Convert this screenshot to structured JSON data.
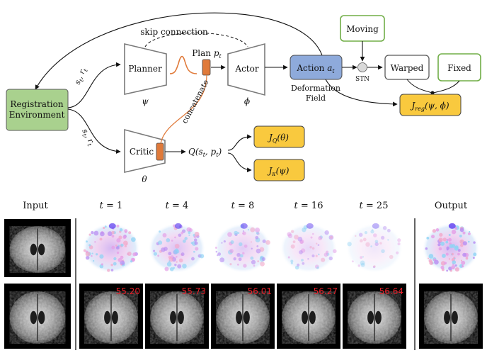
{
  "diagram": {
    "env": {
      "line1": "Registration",
      "line2": "Environment"
    },
    "planner": {
      "label": "Planner",
      "param": "ψ"
    },
    "actor": {
      "label": "Actor",
      "param": "ϕ"
    },
    "critic": {
      "label": "Critic",
      "param": "θ"
    },
    "plan": {
      "text": "Plan ",
      "var": "p",
      "sub": "t"
    },
    "skip": "skip connection",
    "concat": "concatenate",
    "state_top": {
      "s": "s",
      "st": "t",
      "r": "r",
      "rt": "t"
    },
    "state_bottom": {
      "s": "s",
      "st": "t",
      "r": "r",
      "rt": "t"
    },
    "action": {
      "text": "Action ",
      "var": "a",
      "sub": "t"
    },
    "deformation": {
      "line1": "Deformation",
      "line2": "Field"
    },
    "q": {
      "pre": "Q(s",
      "s_sub": "t",
      "mid": ", p",
      "p_sub": "t",
      "post": ")"
    },
    "moving": "Moving",
    "stn": "STN",
    "warped": "Warped",
    "fixed": "Fixed",
    "jreg": {
      "J": "J",
      "sub": "reg",
      "args": "(ψ, ϕ)"
    },
    "jq": {
      "J": "J",
      "sub": "Q",
      "args": "(θ)"
    },
    "jk": {
      "J": "J",
      "sub": "κ",
      "args": "(ψ)"
    }
  },
  "strip": {
    "headers": {
      "input": "Input",
      "t1": {
        "var": "t",
        "eq": " = 1"
      },
      "t4": {
        "var": "t",
        "eq": " = 4"
      },
      "t8": {
        "var": "t",
        "eq": " = 8"
      },
      "t16": {
        "var": "t",
        "eq": " = 16"
      },
      "t25": {
        "var": "t",
        "eq": " = 25"
      },
      "output": "Output"
    },
    "scores": [
      "55.20",
      "55.73",
      "56.01",
      "56.27",
      "56.64"
    ],
    "intensity": [
      1.0,
      0.85,
      0.72,
      0.55,
      0.35
    ],
    "colors": {
      "green": "#a9d18e",
      "blue": "#8eaadb",
      "orange": "#f4b183",
      "gold": "#f9c93e",
      "score_red": "#e8202a"
    }
  }
}
